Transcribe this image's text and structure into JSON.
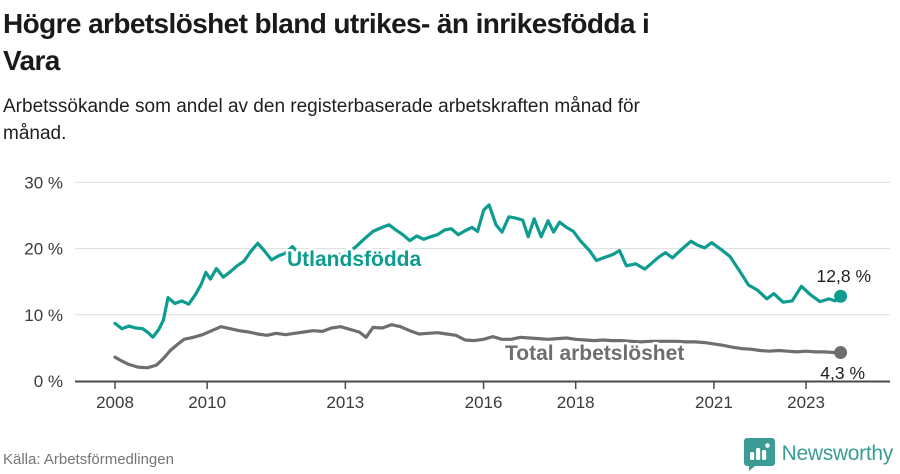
{
  "header": {
    "title_lines": [
      "Högre arbetslöshet bland utrikes- än inrikesfödda i",
      "Vara"
    ],
    "subtitle_lines": [
      "Arbetssökande som andel av den registerbaserade arbetskraften månad för",
      "månad."
    ]
  },
  "chart_data": {
    "type": "line",
    "title": "Högre arbetslöshet bland utrikes- än inrikesfödda i Vara",
    "subtitle": "Arbetssökande som andel av den registerbaserade arbetskraften månad för månad.",
    "grid": "horizontal",
    "legend_position": "inline-labels",
    "x_range": [
      2008.0,
      2023.75
    ],
    "x_unit": "year (monthly data)",
    "ylim": [
      0,
      30
    ],
    "y_unit": "%",
    "x_ticks": [
      {
        "year": 2008,
        "label": "2008"
      },
      {
        "year": 2010,
        "label": "2010"
      },
      {
        "year": 2013,
        "label": "2013"
      },
      {
        "year": 2016,
        "label": "2016"
      },
      {
        "year": 2018,
        "label": "2018"
      },
      {
        "year": 2021,
        "label": "2021"
      },
      {
        "year": 2023,
        "label": "2023"
      }
    ],
    "y_ticks": [
      {
        "value": 0,
        "label": "0 %"
      },
      {
        "value": 10,
        "label": "10 %"
      },
      {
        "value": 20,
        "label": "20 %"
      },
      {
        "value": 30,
        "label": "30 %"
      }
    ],
    "series": [
      {
        "name": "Utlandsfödda",
        "color": "#0d9c8f",
        "end_label": "12,8 %",
        "end_value": 12.8,
        "points": [
          [
            2008.0,
            8.7
          ],
          [
            2008.15,
            7.9
          ],
          [
            2008.3,
            8.3
          ],
          [
            2008.45,
            8.0
          ],
          [
            2008.6,
            7.9
          ],
          [
            2008.72,
            7.3
          ],
          [
            2008.82,
            6.6
          ],
          [
            2008.95,
            7.8
          ],
          [
            2009.05,
            9.2
          ],
          [
            2009.15,
            12.6
          ],
          [
            2009.3,
            11.7
          ],
          [
            2009.45,
            12.1
          ],
          [
            2009.6,
            11.6
          ],
          [
            2009.75,
            13.1
          ],
          [
            2009.87,
            14.6
          ],
          [
            2009.97,
            16.4
          ],
          [
            2010.07,
            15.4
          ],
          [
            2010.2,
            17.0
          ],
          [
            2010.35,
            15.7
          ],
          [
            2010.5,
            16.5
          ],
          [
            2010.65,
            17.4
          ],
          [
            2010.8,
            18.1
          ],
          [
            2010.95,
            19.6
          ],
          [
            2011.1,
            20.8
          ],
          [
            2011.25,
            19.6
          ],
          [
            2011.4,
            18.3
          ],
          [
            2011.55,
            18.9
          ],
          [
            2011.7,
            19.3
          ],
          [
            2011.85,
            20.3
          ],
          [
            2012.0,
            19.2
          ],
          [
            2012.2,
            18.6
          ],
          [
            2012.4,
            19.1
          ],
          [
            2012.6,
            18.5
          ],
          [
            2012.8,
            18.9
          ],
          [
            2013.0,
            19.3
          ],
          [
            2013.2,
            20.1
          ],
          [
            2013.4,
            21.4
          ],
          [
            2013.6,
            22.6
          ],
          [
            2013.8,
            23.2
          ],
          [
            2013.95,
            23.6
          ],
          [
            2014.1,
            22.8
          ],
          [
            2014.25,
            22.1
          ],
          [
            2014.4,
            21.2
          ],
          [
            2014.55,
            21.9
          ],
          [
            2014.7,
            21.4
          ],
          [
            2014.85,
            21.8
          ],
          [
            2015.0,
            22.1
          ],
          [
            2015.15,
            22.8
          ],
          [
            2015.3,
            23.0
          ],
          [
            2015.45,
            22.1
          ],
          [
            2015.6,
            22.7
          ],
          [
            2015.75,
            23.2
          ],
          [
            2015.87,
            22.6
          ],
          [
            2016.0,
            25.8
          ],
          [
            2016.12,
            26.6
          ],
          [
            2016.27,
            23.6
          ],
          [
            2016.4,
            22.5
          ],
          [
            2016.55,
            24.8
          ],
          [
            2016.7,
            24.6
          ],
          [
            2016.85,
            24.3
          ],
          [
            2016.97,
            21.8
          ],
          [
            2017.1,
            24.5
          ],
          [
            2017.25,
            21.8
          ],
          [
            2017.4,
            24.2
          ],
          [
            2017.52,
            22.5
          ],
          [
            2017.65,
            24.0
          ],
          [
            2017.8,
            23.2
          ],
          [
            2017.95,
            22.6
          ],
          [
            2018.1,
            21.2
          ],
          [
            2018.3,
            19.7
          ],
          [
            2018.45,
            18.2
          ],
          [
            2018.6,
            18.6
          ],
          [
            2018.8,
            19.1
          ],
          [
            2018.95,
            19.7
          ],
          [
            2019.1,
            17.4
          ],
          [
            2019.3,
            17.7
          ],
          [
            2019.5,
            16.9
          ],
          [
            2019.65,
            17.8
          ],
          [
            2019.8,
            18.7
          ],
          [
            2019.95,
            19.4
          ],
          [
            2020.1,
            18.6
          ],
          [
            2020.3,
            19.9
          ],
          [
            2020.5,
            21.1
          ],
          [
            2020.65,
            20.5
          ],
          [
            2020.8,
            20.1
          ],
          [
            2020.95,
            20.9
          ],
          [
            2021.15,
            19.9
          ],
          [
            2021.35,
            18.8
          ],
          [
            2021.55,
            16.7
          ],
          [
            2021.75,
            14.5
          ],
          [
            2021.95,
            13.7
          ],
          [
            2022.15,
            12.4
          ],
          [
            2022.3,
            13.2
          ],
          [
            2022.5,
            11.9
          ],
          [
            2022.7,
            12.1
          ],
          [
            2022.9,
            14.3
          ],
          [
            2023.1,
            13.0
          ],
          [
            2023.3,
            12.0
          ],
          [
            2023.5,
            12.4
          ],
          [
            2023.63,
            12.1
          ],
          [
            2023.75,
            12.8
          ]
        ]
      },
      {
        "name": "Total arbetslöshet",
        "color": "#6e6e6e",
        "end_label": "4,3 %",
        "end_value": 4.3,
        "points": [
          [
            2008.0,
            3.6
          ],
          [
            2008.15,
            3.0
          ],
          [
            2008.3,
            2.5
          ],
          [
            2008.5,
            2.1
          ],
          [
            2008.7,
            2.0
          ],
          [
            2008.9,
            2.4
          ],
          [
            2009.05,
            3.4
          ],
          [
            2009.2,
            4.6
          ],
          [
            2009.35,
            5.5
          ],
          [
            2009.5,
            6.3
          ],
          [
            2009.7,
            6.6
          ],
          [
            2009.9,
            7.0
          ],
          [
            2010.1,
            7.6
          ],
          [
            2010.3,
            8.2
          ],
          [
            2010.5,
            7.9
          ],
          [
            2010.7,
            7.6
          ],
          [
            2010.9,
            7.4
          ],
          [
            2011.1,
            7.1
          ],
          [
            2011.3,
            6.9
          ],
          [
            2011.5,
            7.2
          ],
          [
            2011.7,
            7.0
          ],
          [
            2011.9,
            7.2
          ],
          [
            2012.1,
            7.4
          ],
          [
            2012.3,
            7.6
          ],
          [
            2012.5,
            7.5
          ],
          [
            2012.7,
            8.0
          ],
          [
            2012.9,
            8.2
          ],
          [
            2013.1,
            7.8
          ],
          [
            2013.3,
            7.4
          ],
          [
            2013.45,
            6.6
          ],
          [
            2013.6,
            8.1
          ],
          [
            2013.8,
            8.0
          ],
          [
            2014.0,
            8.5
          ],
          [
            2014.2,
            8.2
          ],
          [
            2014.4,
            7.6
          ],
          [
            2014.6,
            7.1
          ],
          [
            2014.8,
            7.2
          ],
          [
            2015.0,
            7.3
          ],
          [
            2015.2,
            7.1
          ],
          [
            2015.4,
            6.9
          ],
          [
            2015.6,
            6.2
          ],
          [
            2015.8,
            6.1
          ],
          [
            2016.0,
            6.3
          ],
          [
            2016.2,
            6.7
          ],
          [
            2016.4,
            6.3
          ],
          [
            2016.6,
            6.3
          ],
          [
            2016.8,
            6.6
          ],
          [
            2017.0,
            6.5
          ],
          [
            2017.2,
            6.4
          ],
          [
            2017.4,
            6.3
          ],
          [
            2017.6,
            6.4
          ],
          [
            2017.8,
            6.5
          ],
          [
            2018.0,
            6.3
          ],
          [
            2018.2,
            6.2
          ],
          [
            2018.4,
            6.1
          ],
          [
            2018.6,
            6.2
          ],
          [
            2018.8,
            6.1
          ],
          [
            2019.0,
            6.1
          ],
          [
            2019.2,
            6.0
          ],
          [
            2019.4,
            5.9
          ],
          [
            2019.6,
            6.0
          ],
          [
            2019.8,
            6.0
          ],
          [
            2020.0,
            6.0
          ],
          [
            2020.2,
            6.0
          ],
          [
            2020.4,
            5.9
          ],
          [
            2020.6,
            5.9
          ],
          [
            2020.8,
            5.8
          ],
          [
            2021.0,
            5.6
          ],
          [
            2021.2,
            5.4
          ],
          [
            2021.4,
            5.1
          ],
          [
            2021.6,
            4.9
          ],
          [
            2021.8,
            4.8
          ],
          [
            2022.0,
            4.6
          ],
          [
            2022.2,
            4.5
          ],
          [
            2022.4,
            4.6
          ],
          [
            2022.6,
            4.5
          ],
          [
            2022.8,
            4.4
          ],
          [
            2023.0,
            4.5
          ],
          [
            2023.2,
            4.4
          ],
          [
            2023.4,
            4.4
          ],
          [
            2023.6,
            4.3
          ],
          [
            2023.75,
            4.3
          ]
        ]
      }
    ]
  },
  "footer": {
    "source": "Källa: Arbetsförmedlingen",
    "brand": "Newsworthy",
    "brand_color": "#3a9c94",
    "icon": "newsworthy-bar-chart-bubble-icon"
  }
}
